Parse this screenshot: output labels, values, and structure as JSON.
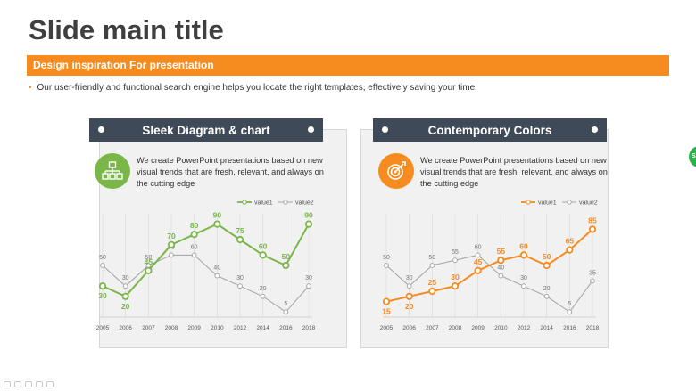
{
  "slide": {
    "title": "Slide main title",
    "banner": "Design inspiration For presentation",
    "bullet": "Our user-friendly and functional search engine helps you locate the right templates, effectively saving your time."
  },
  "colors": {
    "accent": "#f68b1f",
    "green": "#7ab648",
    "gray_line": "#a8a8a8",
    "header_bg": "#3e4a57"
  },
  "cards": [
    {
      "title": "Sleek Diagram & chart",
      "icon": "hierarchy-icon",
      "description": "We create PowerPoint presentations based on new visual trends that are fresh, relevant, and always on the cutting edge"
    },
    {
      "title": "Contemporary Colors",
      "icon": "target-icon",
      "description": "We create PowerPoint presentations based on new visual trends that are fresh, relevant, and always on the cutting edge"
    }
  ],
  "sidebar_badge": "Sli",
  "chart_data": [
    {
      "type": "line",
      "categories": [
        "2005",
        "2006",
        "2007",
        "2008",
        "2009",
        "2010",
        "2012",
        "2014",
        "2016",
        "2018"
      ],
      "series": [
        {
          "name": "value1",
          "values": [
            30,
            20,
            45,
            70,
            80,
            90,
            75,
            60,
            50,
            90
          ],
          "color": "#7ab648"
        },
        {
          "name": "value2",
          "values": [
            50,
            30,
            50,
            60,
            60,
            40,
            30,
            20,
            5,
            30
          ],
          "color": "#a8a8a8"
        }
      ],
      "ylim": [
        0,
        100
      ],
      "legend": "top-right",
      "grid": "vertical"
    },
    {
      "type": "line",
      "categories": [
        "2005",
        "2006",
        "2007",
        "2008",
        "2009",
        "2010",
        "2012",
        "2014",
        "2016",
        "2018"
      ],
      "series": [
        {
          "name": "value1",
          "values": [
            15,
            20,
            25,
            30,
            45,
            55,
            60,
            50,
            65,
            85
          ],
          "color": "#f68b1f"
        },
        {
          "name": "value2",
          "values": [
            50,
            30,
            50,
            55,
            60,
            40,
            30,
            20,
            5,
            35
          ],
          "color": "#a8a8a8"
        }
      ],
      "ylim": [
        0,
        100
      ],
      "legend": "top-right",
      "grid": "vertical"
    }
  ]
}
